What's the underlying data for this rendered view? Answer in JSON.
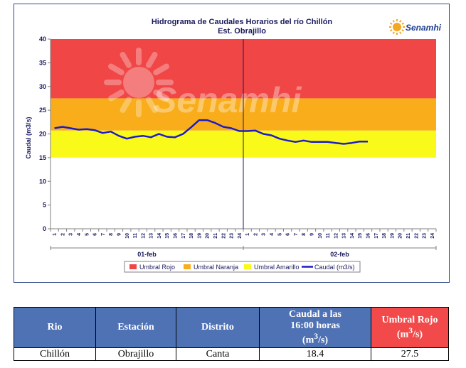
{
  "chart_data": {
    "type": "line",
    "title": "Hidrograma de Caudales Horarios del río Chillón",
    "subtitle": "Est. Obrajillo",
    "ylabel": "Caudal  (m3/s)",
    "ylim": [
      0,
      40
    ],
    "yticks": [
      0,
      5,
      10,
      15,
      20,
      25,
      30,
      35,
      40
    ],
    "x_ticks": [
      "1",
      "2",
      "3",
      "4",
      "5",
      "6",
      "7",
      "8",
      "9",
      "10",
      "11",
      "12",
      "13",
      "14",
      "15",
      "16",
      "17",
      "18",
      "19",
      "20",
      "21",
      "22",
      "23",
      "24",
      "1",
      "2",
      "3",
      "4",
      "5",
      "6",
      "7",
      "8",
      "9",
      "10",
      "11",
      "12",
      "13",
      "14",
      "15",
      "16",
      "17",
      "18",
      "19",
      "20",
      "21",
      "22",
      "23",
      "24"
    ],
    "day_labels": [
      "01-feb",
      "02-feb"
    ],
    "bands": [
      {
        "name": "Umbral Rojo",
        "from": 27.5,
        "to": 40,
        "color": "#f04646"
      },
      {
        "name": "Umbral Naranja",
        "from": 20.7,
        "to": 27.5,
        "color": "#f9ad1b"
      },
      {
        "name": "Umbral Amarillo",
        "from": 15,
        "to": 20.7,
        "color": "#fafa1a"
      }
    ],
    "series": [
      {
        "name": "Caudal (m3/s)",
        "color": "#1c1cc8",
        "values": [
          21.2,
          21.5,
          21.2,
          20.9,
          21.0,
          20.8,
          20.2,
          20.5,
          19.6,
          19.0,
          19.4,
          19.6,
          19.3,
          20.0,
          19.4,
          19.3,
          20.0,
          21.4,
          22.9,
          22.9,
          22.3,
          21.5,
          21.2,
          20.6,
          20.6,
          20.7,
          20.0,
          19.7,
          19.0,
          18.6,
          18.3,
          18.6,
          18.3,
          18.3,
          18.3,
          18.1,
          17.9,
          18.1,
          18.4,
          18.4
        ]
      }
    ],
    "legend": [
      "Umbral Rojo",
      "Umbral Naranja",
      "Umbral Amarillo",
      "Caudal (m3/s)"
    ],
    "legend_position": "bottom",
    "logo_text": "Senamhi",
    "watermark_text": "Senamhi"
  },
  "table": {
    "headers": [
      "Rio",
      "Estación",
      "Distrito",
      "Caudal a las 16:00 horas (m3/s)",
      "Umbral Rojo (m3/s)"
    ],
    "row": [
      "Chillón",
      "Obrajillo",
      "Canta",
      "18.4",
      "27.5"
    ]
  }
}
